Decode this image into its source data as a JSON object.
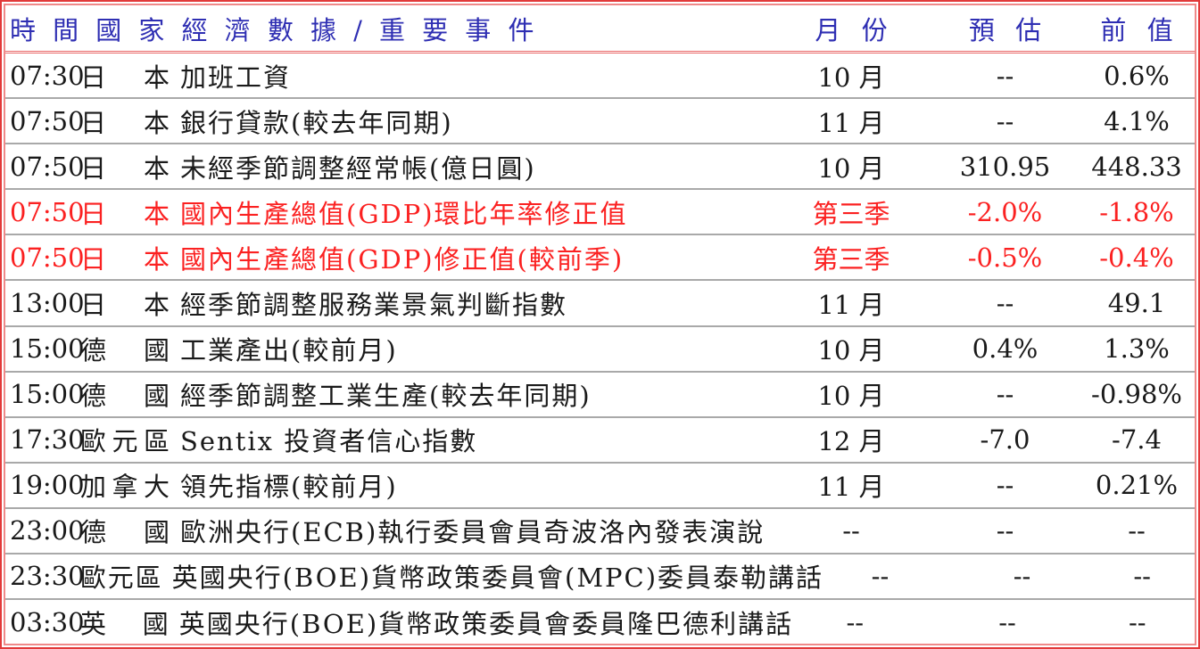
{
  "colors": {
    "header_text": "#2f2fb3",
    "highlight_text": "#fb2121",
    "body_text": "#1a1a1a",
    "outer_border": "#e23a3a",
    "inner_border": "#f08989",
    "header_divider": "#e96969",
    "row_divider": "#a9a9a9"
  },
  "table": {
    "header": {
      "left": "時間國家經濟數據/重要事件",
      "month": "月份",
      "estimate": "預估",
      "previous": "前值"
    },
    "rows": [
      {
        "time": "07:30",
        "country": "日本",
        "event": "加班工資",
        "month": "10 月",
        "estimate": "--",
        "previous": "0.6%",
        "red": false
      },
      {
        "time": "07:50",
        "country": "日本",
        "event": "銀行貸款(較去年同期)",
        "month": "11 月",
        "estimate": "--",
        "previous": "4.1%",
        "red": false
      },
      {
        "time": "07:50",
        "country": "日本",
        "event": "未經季節調整經常帳(億日圓)",
        "month": "10 月",
        "estimate": "310.95",
        "previous": "448.33",
        "red": false
      },
      {
        "time": "07:50",
        "country": "日本",
        "event": "國內生產總值(GDP)環比年率修正值",
        "month": "第三季",
        "estimate": "-2.0%",
        "previous": "-1.8%",
        "red": true
      },
      {
        "time": "07:50",
        "country": "日本",
        "event": "國內生產總值(GDP)修正值(較前季)",
        "month": "第三季",
        "estimate": "-0.5%",
        "previous": "-0.4%",
        "red": true
      },
      {
        "time": "13:00",
        "country": "日本",
        "event": "經季節調整服務業景氣判斷指數",
        "month": "11 月",
        "estimate": "--",
        "previous": "49.1",
        "red": false
      },
      {
        "time": "15:00",
        "country": "德國",
        "event": "工業產出(較前月)",
        "month": "10 月",
        "estimate": "0.4%",
        "previous": "1.3%",
        "red": false
      },
      {
        "time": "15:00",
        "country": "德國",
        "event": "經季節調整工業生產(較去年同期)",
        "month": "10 月",
        "estimate": "--",
        "previous": "-0.98%",
        "red": false
      },
      {
        "time": "17:30",
        "country": "歐元區",
        "event": "Sentix 投資者信心指數",
        "month": "12 月",
        "estimate": "-7.0",
        "previous": "-7.4",
        "red": false
      },
      {
        "time": "19:00",
        "country": "加拿大",
        "event": "領先指標(較前月)",
        "month": "11 月",
        "estimate": "--",
        "previous": "0.21%",
        "red": false
      },
      {
        "time": "23:00",
        "country": "德國",
        "event": "歐洲央行(ECB)執行委員會員奇波洛內發表演說",
        "month": "--",
        "estimate": "--",
        "previous": "--",
        "red": false
      },
      {
        "time": "23:30",
        "country": "歐元區",
        "event": "英國央行(BOE)貨幣政策委員會(MPC)委員泰勒講話",
        "month": "--",
        "estimate": "--",
        "previous": "--",
        "red": false
      },
      {
        "time": "03:30",
        "country": "英國",
        "event": "英國央行(BOE)貨幣政策委員會委員隆巴德利講話",
        "month": "--",
        "estimate": "--",
        "previous": "--",
        "red": false
      }
    ]
  }
}
